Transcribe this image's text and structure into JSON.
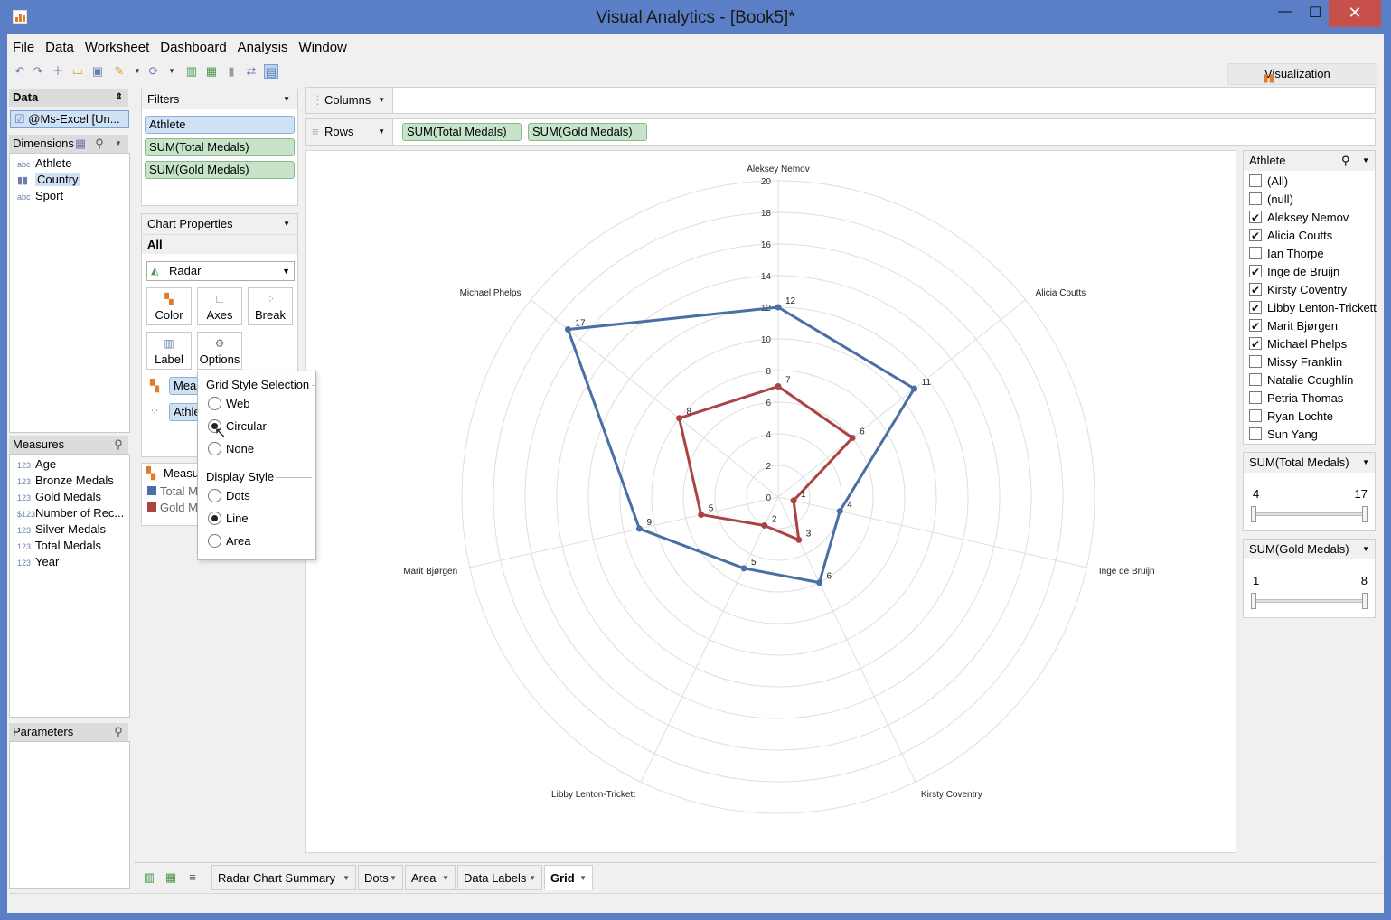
{
  "window": {
    "title": "Visual Analytics - [Book5]*",
    "min": "—",
    "max": "☐",
    "close": "✕"
  },
  "menu": [
    "File",
    "Data",
    "Worksheet",
    "Dashboard",
    "Analysis",
    "Window"
  ],
  "visualization_button": "Visualization",
  "data_panel": {
    "header": "Data",
    "source": "@Ms-Excel [Un...",
    "dimensions_header": "Dimensions",
    "dimensions": [
      {
        "type": "abc",
        "label": "Athlete"
      },
      {
        "type": "geo",
        "label": "Country"
      },
      {
        "type": "abc",
        "label": "Sport"
      }
    ],
    "measures_header": "Measures",
    "measures": [
      {
        "type": "123",
        "label": "Age"
      },
      {
        "type": "123",
        "label": "Bronze Medals"
      },
      {
        "type": "123",
        "label": "Gold Medals"
      },
      {
        "type": "$123",
        "label": "Number of Rec..."
      },
      {
        "type": "123",
        "label": "Silver Medals"
      },
      {
        "type": "123",
        "label": "Total Medals"
      },
      {
        "type": "123",
        "label": "Year"
      }
    ],
    "parameters_header": "Parameters"
  },
  "filters": {
    "header": "Filters",
    "items": [
      "Athlete",
      "SUM(Total Medals)",
      "SUM(Gold Medals)"
    ]
  },
  "chart_properties": {
    "header": "Chart Properties",
    "scope": "All",
    "chart_type": "Radar",
    "buttons": [
      "Color",
      "Axes",
      "Break",
      "Label",
      "Options"
    ],
    "color_pill": "Meas",
    "label_pill": "Athle",
    "legend_header": "Measu",
    "legend_items": [
      "Total M",
      "Gold M"
    ]
  },
  "popup": {
    "grid_header": "Grid Style Selection",
    "grid_options": [
      "Web",
      "Circular",
      "None"
    ],
    "grid_selected": "Circular",
    "display_header": "Display Style",
    "display_options": [
      "Dots",
      "Line",
      "Area"
    ],
    "display_selected": "Line"
  },
  "shelves": {
    "columns_label": "Columns",
    "rows_label": "Rows",
    "rows_pills": [
      "SUM(Total Medals)",
      "SUM(Gold Medals)"
    ]
  },
  "athlete_filter": {
    "header": "Athlete",
    "items": [
      {
        "label": "(All)",
        "checked": false
      },
      {
        "label": "(null)",
        "checked": false
      },
      {
        "label": "Aleksey Nemov",
        "checked": true
      },
      {
        "label": "Alicia Coutts",
        "checked": true
      },
      {
        "label": "Ian Thorpe",
        "checked": false
      },
      {
        "label": "Inge de Bruijn",
        "checked": true
      },
      {
        "label": "Kirsty Coventry",
        "checked": true
      },
      {
        "label": "Libby Lenton-Trickett",
        "checked": true
      },
      {
        "label": "Marit Bjørgen",
        "checked": true
      },
      {
        "label": "Michael Phelps",
        "checked": true
      },
      {
        "label": "Missy Franklin",
        "checked": false
      },
      {
        "label": "Natalie Coughlin",
        "checked": false
      },
      {
        "label": "Petria Thomas",
        "checked": false
      },
      {
        "label": "Ryan Lochte",
        "checked": false
      },
      {
        "label": "Sun Yang",
        "checked": false
      }
    ]
  },
  "total_medals_filter": {
    "header": "SUM(Total Medals)",
    "min": "4",
    "max": "17"
  },
  "gold_medals_filter": {
    "header": "SUM(Gold Medals)",
    "min": "1",
    "max": "8"
  },
  "tabs": [
    {
      "label": "Radar Chart Summary",
      "active": false
    },
    {
      "label": "Dots",
      "active": false
    },
    {
      "label": "Area",
      "active": false
    },
    {
      "label": "Data Labels",
      "active": false
    },
    {
      "label": "Grid",
      "active": true
    }
  ],
  "colors": {
    "total": "#4a6fa5",
    "gold": "#a94442",
    "pill_dim": "#cfe1f5",
    "pill_measure": "#c7e3c9"
  },
  "chart_data": {
    "type": "radar",
    "grid": "circular",
    "rlim": [
      0,
      20
    ],
    "ticks": [
      "0",
      "2",
      "4",
      "6",
      "8",
      "10",
      "12",
      "14",
      "16",
      "18",
      "20"
    ],
    "categories": [
      "Aleksey Nemov",
      "Alicia Coutts",
      "Inge de Bruijn",
      "Kirsty Coventry",
      "Libby Lenton-Trickett",
      "Marit Bjørgen",
      "Michael Phelps"
    ],
    "series": [
      {
        "values": [
          12,
          11,
          4,
          6,
          5,
          9,
          17
        ],
        "labels": [
          "12",
          "11",
          "4",
          "6",
          "5",
          "9",
          "17"
        ]
      },
      {
        "values": [
          7,
          6,
          1,
          3,
          2,
          5,
          8
        ],
        "labels": [
          "7",
          "6",
          "1",
          "3",
          "2",
          "5",
          "8"
        ]
      }
    ]
  }
}
